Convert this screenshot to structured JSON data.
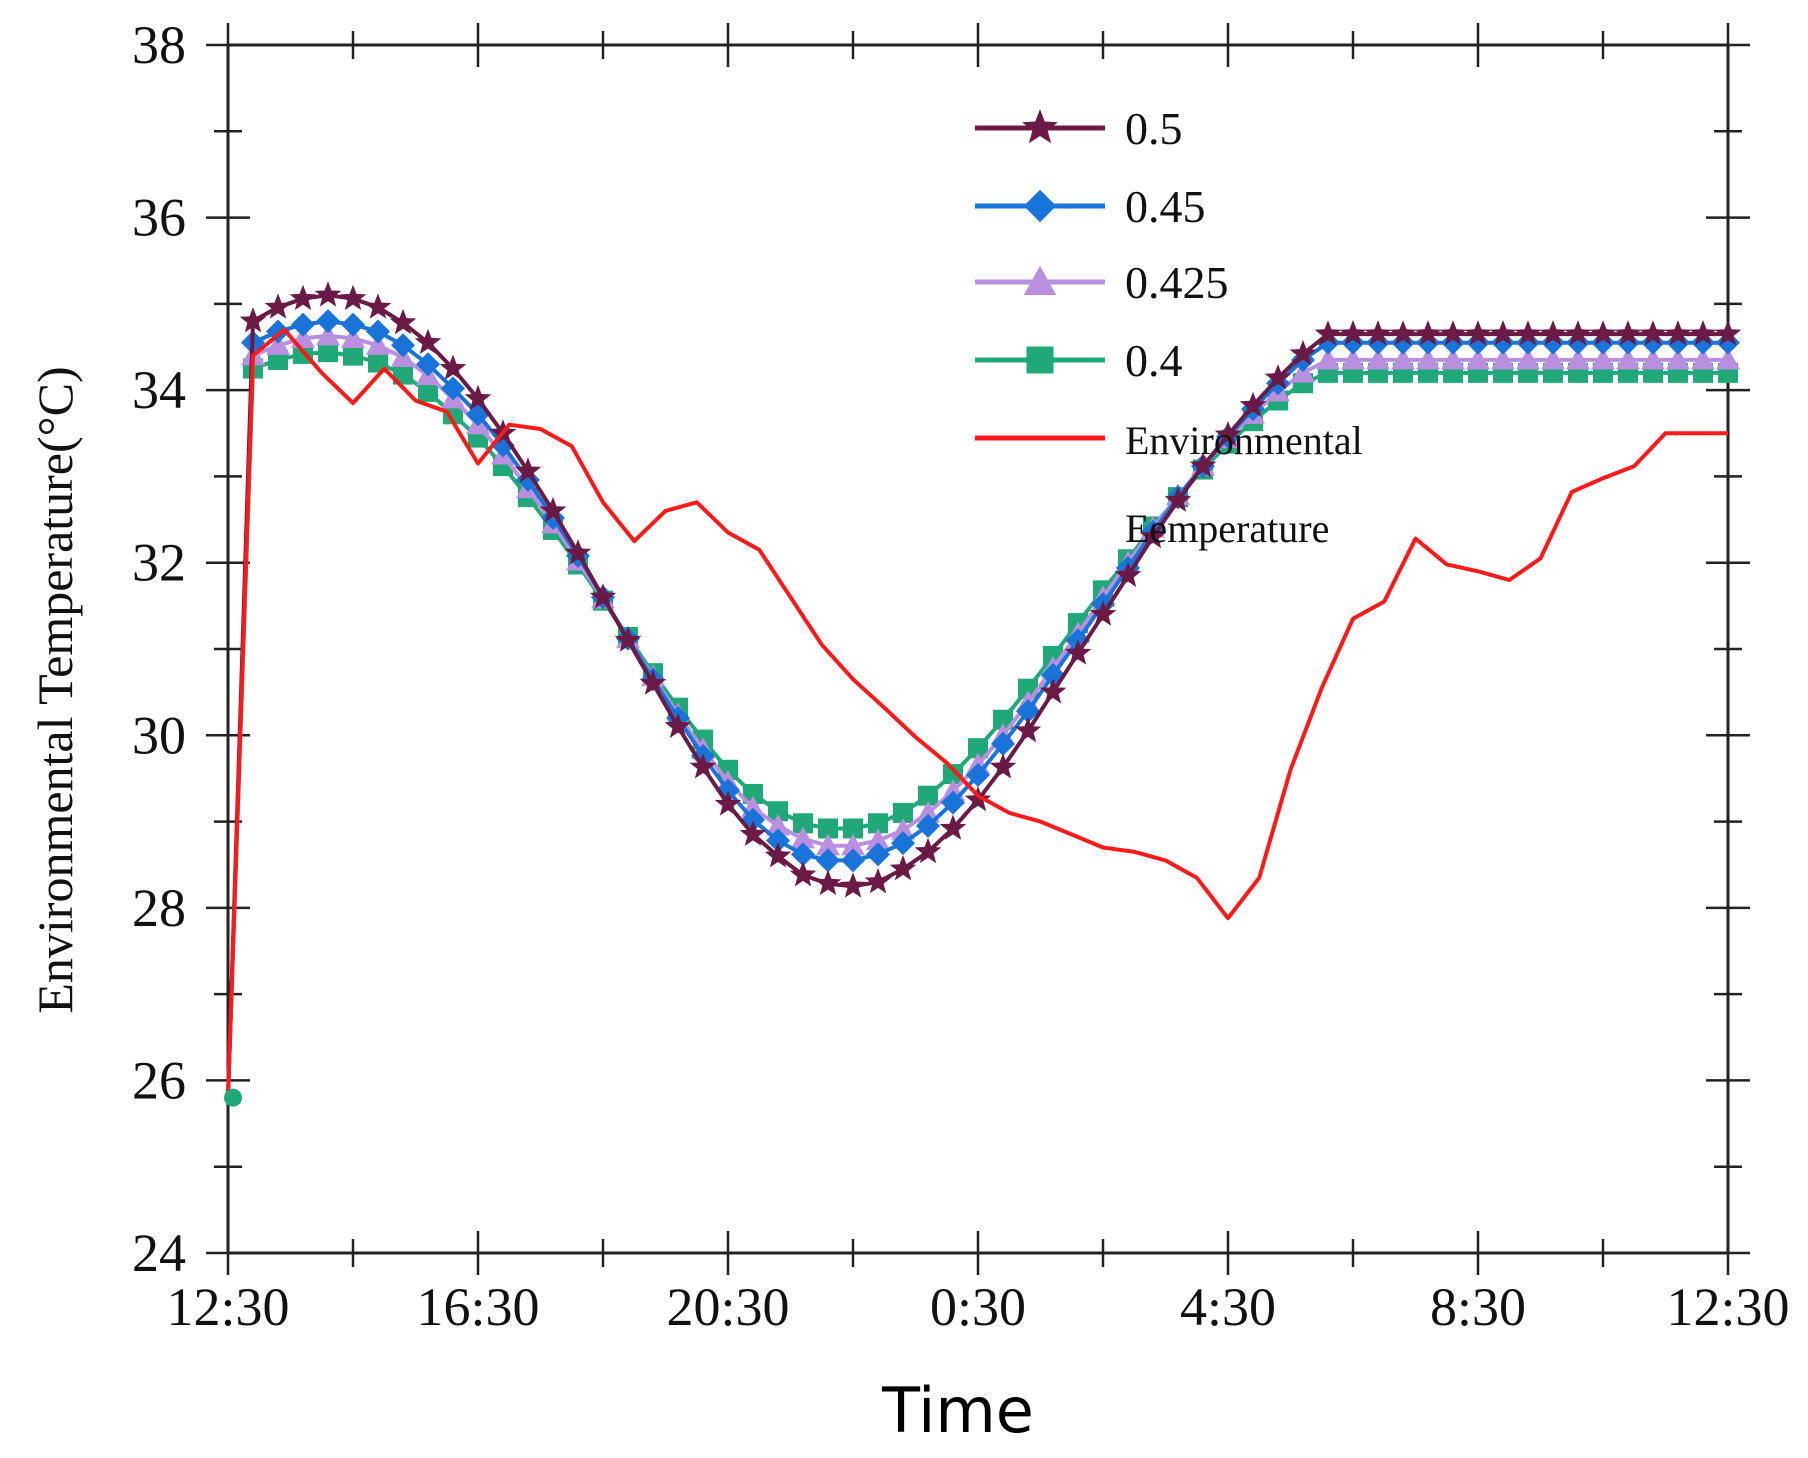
{
  "chart_data": {
    "type": "line",
    "title": "",
    "xlabel": "Time",
    "ylabel": "Environmental Temperature(°C)",
    "ylim": [
      24,
      38
    ],
    "yticks": [
      24,
      26,
      28,
      30,
      32,
      34,
      36,
      38
    ],
    "xlim": [
      0,
      24
    ],
    "xticks": [
      0,
      4,
      8,
      12,
      16,
      20,
      24
    ],
    "xtick_labels": [
      "12:30",
      "16:30",
      "20:30",
      "0:30",
      "4:30",
      "8:30",
      "12:30"
    ],
    "grid": false,
    "legend_position": "top-right",
    "series": [
      {
        "name": "0.5",
        "color": "#6b1a45",
        "marker": "star",
        "x": [
          0,
          0.4,
          0.8,
          1.2,
          1.6,
          2,
          2.4,
          2.8,
          3.2,
          3.6,
          4,
          4.4,
          4.8,
          5.2,
          5.6,
          6,
          6.4,
          6.8,
          7.2,
          7.6,
          8,
          8.4,
          8.8,
          9.2,
          9.6,
          10,
          10.4,
          10.8,
          11.2,
          11.6,
          12,
          12.4,
          12.8,
          13.2,
          13.6,
          14,
          14.4,
          14.8,
          15.2,
          15.6,
          16,
          16.4,
          16.8,
          17.2,
          17.6,
          18,
          18.4,
          18.8,
          19.2,
          19.6,
          20,
          20.4,
          20.8,
          21.2,
          21.6,
          22,
          22.4,
          22.8,
          23.2,
          23.6,
          24
        ],
        "values": [
          25.8,
          34.8,
          34.96,
          35.06,
          35.1,
          35.06,
          34.96,
          34.78,
          34.55,
          34.25,
          33.9,
          33.5,
          33.06,
          32.6,
          32.11,
          31.6,
          31.1,
          30.6,
          30.1,
          29.63,
          29.2,
          28.85,
          28.6,
          28.38,
          28.28,
          28.25,
          28.3,
          28.45,
          28.65,
          28.92,
          29.25,
          29.63,
          30.05,
          30.5,
          30.95,
          31.4,
          31.85,
          32.3,
          32.72,
          33.12,
          33.48,
          33.82,
          34.14,
          34.42,
          34.65,
          34.65,
          34.65,
          34.65,
          34.65,
          34.65,
          34.65,
          34.65,
          34.65,
          34.65,
          34.65,
          34.65,
          34.65,
          34.65,
          34.65,
          34.65,
          34.65
        ]
      },
      {
        "name": "0.45",
        "color": "#1a73d9",
        "marker": "diamond",
        "x": [
          0,
          0.4,
          0.8,
          1.2,
          1.6,
          2,
          2.4,
          2.8,
          3.2,
          3.6,
          4,
          4.4,
          4.8,
          5.2,
          5.6,
          6,
          6.4,
          6.8,
          7.2,
          7.6,
          8,
          8.4,
          8.8,
          9.2,
          9.6,
          10,
          10.4,
          10.8,
          11.2,
          11.6,
          12,
          12.4,
          12.8,
          13.2,
          13.6,
          14,
          14.4,
          14.8,
          15.2,
          15.6,
          16,
          16.4,
          16.8,
          17.2,
          17.6,
          18,
          18.4,
          18.8,
          19.2,
          19.6,
          20,
          20.4,
          20.8,
          21.2,
          21.6,
          22,
          22.4,
          22.8,
          23.2,
          23.6,
          24
        ],
        "values": [
          25.8,
          34.55,
          34.68,
          34.76,
          34.8,
          34.76,
          34.68,
          34.52,
          34.3,
          34.02,
          33.72,
          33.36,
          32.96,
          32.52,
          32.08,
          31.6,
          31.12,
          30.65,
          30.2,
          29.76,
          29.36,
          29.02,
          28.78,
          28.62,
          28.55,
          28.55,
          28.62,
          28.75,
          28.95,
          29.22,
          29.54,
          29.9,
          30.28,
          30.7,
          31.1,
          31.52,
          31.94,
          32.36,
          32.76,
          33.12,
          33.46,
          33.78,
          34.08,
          34.35,
          34.55,
          34.55,
          34.55,
          34.55,
          34.55,
          34.55,
          34.55,
          34.55,
          34.55,
          34.55,
          34.55,
          34.55,
          34.55,
          34.55,
          34.55,
          34.55,
          34.55
        ]
      },
      {
        "name": "0.425",
        "color": "#b98fe0",
        "marker": "triangle",
        "x": [
          0,
          0.4,
          0.8,
          1.2,
          1.6,
          2,
          2.4,
          2.8,
          3.2,
          3.6,
          4,
          4.4,
          4.8,
          5.2,
          5.6,
          6,
          6.4,
          6.8,
          7.2,
          7.6,
          8,
          8.4,
          8.8,
          9.2,
          9.6,
          10,
          10.4,
          10.8,
          11.2,
          11.6,
          12,
          12.4,
          12.8,
          13.2,
          13.6,
          14,
          14.4,
          14.8,
          15.2,
          15.6,
          16,
          16.4,
          16.8,
          17.2,
          17.6,
          18,
          18.4,
          18.8,
          19.2,
          19.6,
          20,
          20.4,
          20.8,
          21.2,
          21.6,
          22,
          22.4,
          22.8,
          23.2,
          23.6,
          24
        ],
        "values": [
          25.8,
          34.4,
          34.52,
          34.6,
          34.63,
          34.6,
          34.52,
          34.38,
          34.17,
          33.9,
          33.6,
          33.25,
          32.86,
          32.45,
          32.02,
          31.58,
          31.12,
          30.68,
          30.24,
          29.84,
          29.46,
          29.16,
          28.95,
          28.8,
          28.72,
          28.72,
          28.78,
          28.9,
          29.1,
          29.35,
          29.66,
          30.0,
          30.38,
          30.78,
          31.18,
          31.6,
          32.0,
          32.4,
          32.78,
          33.12,
          33.44,
          33.72,
          33.98,
          34.2,
          34.35,
          34.35,
          34.35,
          34.35,
          34.35,
          34.35,
          34.35,
          34.35,
          34.35,
          34.35,
          34.35,
          34.35,
          34.35,
          34.35,
          34.35,
          34.35,
          34.35
        ]
      },
      {
        "name": "0.4",
        "color": "#20a878",
        "marker": "square",
        "x": [
          0,
          0.4,
          0.8,
          1.2,
          1.6,
          2,
          2.4,
          2.8,
          3.2,
          3.6,
          4,
          4.4,
          4.8,
          5.2,
          5.6,
          6,
          6.4,
          6.8,
          7.2,
          7.6,
          8,
          8.4,
          8.8,
          9.2,
          9.6,
          10,
          10.4,
          10.8,
          11.2,
          11.6,
          12,
          12.4,
          12.8,
          13.2,
          13.6,
          14,
          14.4,
          14.8,
          15.2,
          15.6,
          16,
          16.4,
          16.8,
          17.2,
          17.6,
          18,
          18.4,
          18.8,
          19.2,
          19.6,
          20,
          20.4,
          20.8,
          21.2,
          21.6,
          22,
          22.4,
          22.8,
          23.2,
          23.6,
          24
        ],
        "values": [
          25.8,
          34.25,
          34.35,
          34.42,
          34.44,
          34.4,
          34.32,
          34.18,
          33.98,
          33.72,
          33.45,
          33.12,
          32.76,
          32.38,
          31.98,
          31.56,
          31.14,
          30.72,
          30.32,
          29.95,
          29.6,
          29.32,
          29.12,
          28.98,
          28.92,
          28.92,
          28.98,
          29.1,
          29.3,
          29.55,
          29.85,
          30.18,
          30.54,
          30.92,
          31.3,
          31.68,
          32.04,
          32.42,
          32.76,
          33.08,
          33.38,
          33.64,
          33.88,
          34.08,
          34.2,
          34.2,
          34.2,
          34.2,
          34.2,
          34.2,
          34.2,
          34.2,
          34.2,
          34.2,
          34.2,
          34.2,
          34.2,
          34.2,
          34.2,
          34.2,
          34.2
        ]
      },
      {
        "name": "Environmental",
        "name_line2": "Eemperature",
        "color": "#ff1a1a",
        "marker": "none",
        "x": [
          0,
          0.4,
          0.9,
          1.5,
          2,
          2.5,
          3,
          3.5,
          4,
          4.5,
          5,
          5.5,
          6,
          6.5,
          7,
          7.5,
          8,
          8.5,
          9,
          9.5,
          10,
          10.5,
          11,
          11.5,
          12,
          12.5,
          13,
          13.5,
          14,
          14.5,
          15,
          15.5,
          16,
          16.5,
          17,
          17.5,
          18,
          18.5,
          19,
          19.5,
          20,
          20.5,
          21,
          21.5,
          22,
          22.5,
          23,
          23.5,
          24
        ],
        "values": [
          25.8,
          34.4,
          34.7,
          34.2,
          33.85,
          34.25,
          33.88,
          33.75,
          33.15,
          33.6,
          33.55,
          33.35,
          32.7,
          32.25,
          32.6,
          32.7,
          32.35,
          32.15,
          31.6,
          31.05,
          30.65,
          30.32,
          29.98,
          29.68,
          29.3,
          29.1,
          29.0,
          28.85,
          28.7,
          28.65,
          28.55,
          28.35,
          27.88,
          28.35,
          29.6,
          30.55,
          31.35,
          31.55,
          32.28,
          31.98,
          31.9,
          31.8,
          32.05,
          32.82,
          32.98,
          33.12,
          33.5,
          33.5,
          33.5
        ]
      }
    ]
  },
  "ui": {
    "ytick_labels": [
      "24",
      "26",
      "28",
      "30",
      "32",
      "34",
      "36",
      "38"
    ]
  }
}
